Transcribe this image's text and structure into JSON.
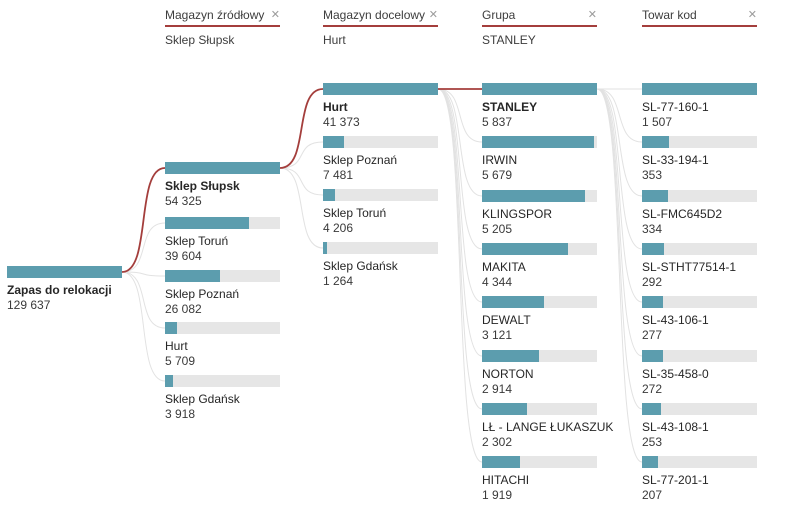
{
  "colors": {
    "bar": "#5C9DAE",
    "track": "#E6E6E6",
    "selected_path": "#A43E3C",
    "connector": "#E2E2E2",
    "header_underline": "#A43E3C"
  },
  "root": {
    "label": "Zapas do relokacji",
    "value": "129 637"
  },
  "columns": [
    {
      "header": "Magazyn źródłowy",
      "close_icon": "✕",
      "selected": "Sklep Słupsk",
      "nodes": [
        {
          "label": "Sklep Słupsk",
          "value": "54 325"
        },
        {
          "label": "Sklep Toruń",
          "value": "39 604"
        },
        {
          "label": "Sklep Poznań",
          "value": "26 082"
        },
        {
          "label": "Hurt",
          "value": "5 709"
        },
        {
          "label": "Sklep Gdańsk",
          "value": "3 918"
        }
      ]
    },
    {
      "header": "Magazyn docelowy",
      "close_icon": "✕",
      "selected": "Hurt",
      "nodes": [
        {
          "label": "Hurt",
          "value": "41 373"
        },
        {
          "label": "Sklep Poznań",
          "value": "7 481"
        },
        {
          "label": "Sklep Toruń",
          "value": "4 206"
        },
        {
          "label": "Sklep Gdańsk",
          "value": "1 264"
        }
      ]
    },
    {
      "header": "Grupa",
      "close_icon": "✕",
      "selected": "STANLEY",
      "nodes": [
        {
          "label": "STANLEY",
          "value": "5 837"
        },
        {
          "label": "IRWIN",
          "value": "5 679"
        },
        {
          "label": "KLINGSPOR",
          "value": "5 205"
        },
        {
          "label": "MAKITA",
          "value": "4 344"
        },
        {
          "label": "DEWALT",
          "value": "3 121"
        },
        {
          "label": "NORTON",
          "value": "2 914"
        },
        {
          "label": "LŁ - LANGE ŁUKASZUK",
          "value": "2 302"
        },
        {
          "label": "HITACHI",
          "value": "1 919"
        }
      ]
    },
    {
      "header": "Towar kod",
      "close_icon": "✕",
      "nodes": [
        {
          "label": "SL-77-160-1",
          "value": "1 507"
        },
        {
          "label": "SL-33-194-1",
          "value": "353"
        },
        {
          "label": "SL-FMC645D2",
          "value": "334"
        },
        {
          "label": "SL-STHT77514-1",
          "value": "292"
        },
        {
          "label": "SL-43-106-1",
          "value": "277"
        },
        {
          "label": "SL-35-458-0",
          "value": "272"
        },
        {
          "label": "SL-43-108-1",
          "value": "253"
        },
        {
          "label": "SL-77-201-1",
          "value": "207"
        }
      ]
    }
  ],
  "chart_data": {
    "type": "bar",
    "title": "Decomposition tree: Zapas do relokacji",
    "root": {
      "label": "Zapas do relokacji",
      "value": 129637
    },
    "levels": [
      {
        "field": "Magazyn źródłowy",
        "selected": "Sklep Słupsk",
        "categories": [
          "Sklep Słupsk",
          "Sklep Toruń",
          "Sklep Poznań",
          "Hurt",
          "Sklep Gdańsk"
        ],
        "values": [
          54325,
          39604,
          26082,
          5709,
          3918
        ]
      },
      {
        "field": "Magazyn docelowy",
        "selected": "Hurt",
        "categories": [
          "Hurt",
          "Sklep Poznań",
          "Sklep Toruń",
          "Sklep Gdańsk"
        ],
        "values": [
          41373,
          7481,
          4206,
          1264
        ]
      },
      {
        "field": "Grupa",
        "selected": "STANLEY",
        "categories": [
          "STANLEY",
          "IRWIN",
          "KLINGSPOR",
          "MAKITA",
          "DEWALT",
          "NORTON",
          "LŁ - LANGE ŁUKASZUK",
          "HITACHI"
        ],
        "values": [
          5837,
          5679,
          5205,
          4344,
          3121,
          2914,
          2302,
          1919
        ]
      },
      {
        "field": "Towar kod",
        "selected": null,
        "categories": [
          "SL-77-160-1",
          "SL-33-194-1",
          "SL-FMC645D2",
          "SL-STHT77514-1",
          "SL-43-106-1",
          "SL-35-458-0",
          "SL-43-108-1",
          "SL-77-201-1"
        ],
        "values": [
          1507,
          353,
          334,
          292,
          277,
          272,
          253,
          207
        ]
      }
    ],
    "layout_hints": {
      "bars_relative_to": "column max",
      "selected_path_color": "#A43E3C",
      "bar_color": "#5C9DAE"
    }
  }
}
